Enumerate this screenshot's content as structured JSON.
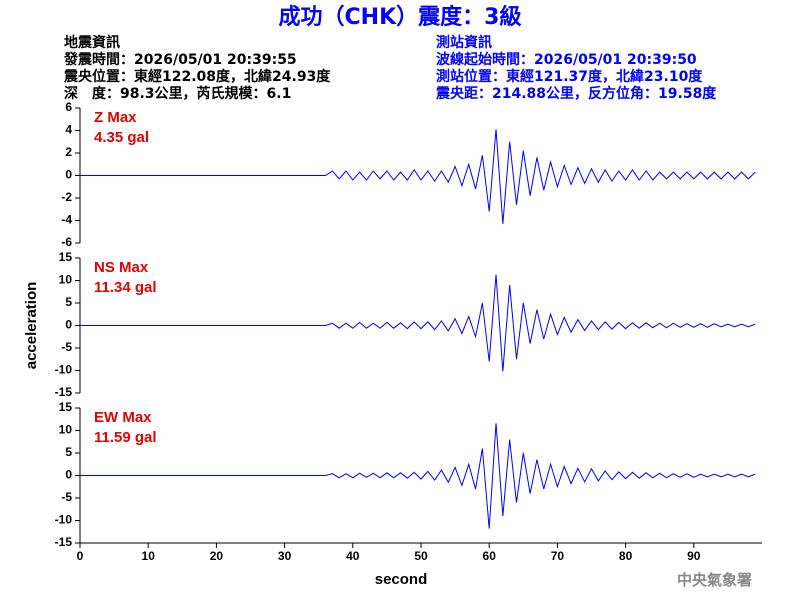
{
  "title": "成功（CHK）震度：3級",
  "header": {
    "left": [
      "地震資訊",
      "發震時間：2026/05/01 20:39:55",
      "震央位置：東經122.08度，北緯24.93度",
      "深　度：98.3公里，芮氏規模：6.1"
    ],
    "right": [
      "測站資訊",
      "波線起始時間：2026/05/01 20:39:50",
      "測站位置：東經121.37度，北緯23.10度",
      "震央距：214.88公里，反方位角：19.58度"
    ]
  },
  "footer": "中央氣象署",
  "chart_data": [
    {
      "type": "line",
      "annotation": [
        "Z Max",
        "4.35 gal"
      ],
      "color": "#0000ff",
      "xlim": [
        0,
        100
      ],
      "ylim": [
        -6,
        6
      ],
      "yticks": [
        6,
        4,
        2,
        0,
        -2,
        -4,
        -6
      ],
      "x": [
        0,
        36,
        37,
        38,
        39,
        40,
        41,
        42,
        43,
        44,
        45,
        46,
        47,
        48,
        49,
        50,
        51,
        52,
        53,
        54,
        55,
        56,
        57,
        58,
        59,
        60,
        61,
        62,
        63,
        64,
        65,
        66,
        67,
        68,
        69,
        70,
        71,
        72,
        73,
        74,
        75,
        76,
        77,
        78,
        79,
        80,
        81,
        82,
        83,
        84,
        85,
        86,
        87,
        88,
        89,
        90,
        91,
        92,
        93,
        94,
        95,
        96,
        97,
        98,
        99
      ],
      "values": [
        0,
        0,
        0.4,
        -0.3,
        0.4,
        -0.4,
        0.3,
        -0.4,
        0.4,
        -0.3,
        0.4,
        -0.4,
        0.3,
        -0.4,
        0.5,
        -0.4,
        0.4,
        -0.5,
        0.4,
        -0.6,
        0.8,
        -0.9,
        1.0,
        -1.2,
        1.8,
        -3.2,
        4.1,
        -4.3,
        3.0,
        -2.6,
        2.2,
        -1.8,
        1.6,
        -1.3,
        1.2,
        -1.0,
        0.9,
        -0.8,
        0.7,
        -0.7,
        0.6,
        -0.6,
        0.5,
        -0.5,
        0.4,
        -0.4,
        0.5,
        -0.4,
        0.4,
        -0.4,
        0.3,
        -0.3,
        0.3,
        -0.3,
        0.3,
        -0.3,
        0.3,
        -0.3,
        0.3,
        -0.3,
        0.3,
        -0.3,
        0.3,
        -0.3,
        0.3
      ]
    },
    {
      "type": "line",
      "annotation": [
        "NS Max",
        "11.34 gal"
      ],
      "color": "#0000ff",
      "ylabel": "acceleration",
      "xlim": [
        0,
        100
      ],
      "ylim": [
        -15,
        15
      ],
      "yticks": [
        15,
        10,
        5,
        0,
        -5,
        -10,
        -15
      ],
      "x": [
        0,
        36,
        37,
        38,
        39,
        40,
        41,
        42,
        43,
        44,
        45,
        46,
        47,
        48,
        49,
        50,
        51,
        52,
        53,
        54,
        55,
        56,
        57,
        58,
        59,
        60,
        61,
        62,
        63,
        64,
        65,
        66,
        67,
        68,
        69,
        70,
        71,
        72,
        73,
        74,
        75,
        76,
        77,
        78,
        79,
        80,
        81,
        82,
        83,
        84,
        85,
        86,
        87,
        88,
        89,
        90,
        91,
        92,
        93,
        94,
        95,
        96,
        97,
        98,
        99
      ],
      "values": [
        0,
        0,
        0.5,
        -0.6,
        0.5,
        -0.6,
        0.7,
        -0.6,
        0.5,
        -0.6,
        0.7,
        -0.6,
        0.6,
        -0.7,
        0.8,
        -0.7,
        0.8,
        -0.9,
        1.0,
        -1.2,
        1.5,
        -1.8,
        2.0,
        -2.5,
        5.0,
        -8.0,
        11.3,
        -10.2,
        9.0,
        -7.5,
        5.0,
        -4.0,
        3.5,
        -3.0,
        2.5,
        -2.0,
        1.8,
        -1.5,
        1.3,
        -1.1,
        1.0,
        -0.9,
        0.8,
        -0.8,
        0.7,
        -0.7,
        0.6,
        -0.6,
        0.6,
        -0.5,
        0.5,
        -0.5,
        0.5,
        -0.4,
        0.4,
        -0.4,
        0.4,
        -0.4,
        0.4,
        -0.3,
        0.3,
        -0.3,
        0.3,
        -0.3,
        0.3
      ]
    },
    {
      "type": "line",
      "annotation": [
        "EW Max",
        "11.59 gal"
      ],
      "color": "#0000ff",
      "xlabel": "second",
      "xlim": [
        0,
        100
      ],
      "xticks": [
        0,
        10,
        20,
        30,
        40,
        50,
        60,
        70,
        80,
        90
      ],
      "ylim": [
        -15,
        15
      ],
      "yticks": [
        15,
        10,
        5,
        0,
        -5,
        -10,
        -15
      ],
      "x": [
        0,
        36,
        37,
        38,
        39,
        40,
        41,
        42,
        43,
        44,
        45,
        46,
        47,
        48,
        49,
        50,
        51,
        52,
        53,
        54,
        55,
        56,
        57,
        58,
        59,
        60,
        61,
        62,
        63,
        64,
        65,
        66,
        67,
        68,
        69,
        70,
        71,
        72,
        73,
        74,
        75,
        76,
        77,
        78,
        79,
        80,
        81,
        82,
        83,
        84,
        85,
        86,
        87,
        88,
        89,
        90,
        91,
        92,
        93,
        94,
        95,
        96,
        97,
        98,
        99
      ],
      "values": [
        0,
        0,
        0.4,
        -0.5,
        0.4,
        -0.5,
        0.5,
        -0.4,
        0.5,
        -0.5,
        0.6,
        -0.5,
        0.6,
        -0.6,
        0.7,
        -0.8,
        0.9,
        -1.0,
        1.2,
        -1.5,
        1.8,
        -2.2,
        2.5,
        -3.0,
        6.0,
        -11.8,
        11.6,
        -9.0,
        8.0,
        -6.0,
        5.0,
        -4.0,
        3.5,
        -3.0,
        2.5,
        -2.5,
        2.0,
        -1.8,
        1.6,
        -1.4,
        1.5,
        -1.2,
        1.0,
        -0.9,
        0.8,
        -0.7,
        0.7,
        -0.6,
        0.6,
        -0.5,
        0.5,
        -0.5,
        0.4,
        -0.4,
        0.4,
        -0.4,
        0.3,
        -0.3,
        0.3,
        -0.3,
        0.3,
        -0.3,
        0.3,
        -0.3,
        0.3
      ]
    }
  ]
}
